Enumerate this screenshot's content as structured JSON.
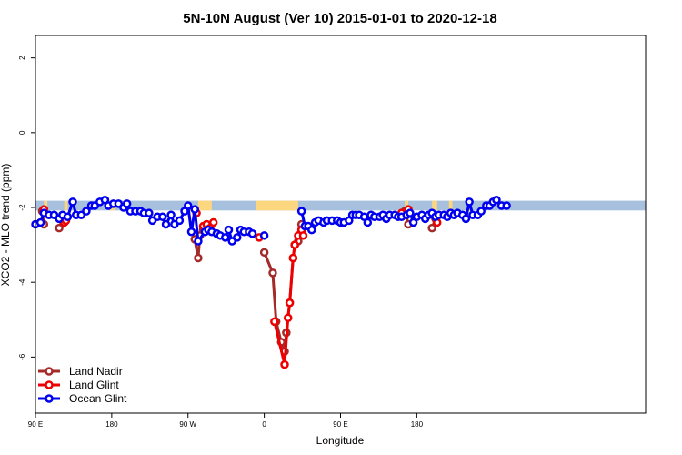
{
  "chart_data": {
    "type": "line",
    "title": "5N-10N August (Ver 10)   2015-01-01 to 2020-12-18",
    "xlabel": "Longitude",
    "ylabel": "XCO2 - MLO trend (ppm)",
    "xlim": [
      -90,
      270
    ],
    "ylim": [
      -7.5,
      2.6
    ],
    "x_ticks": [
      {
        "value": -90,
        "label": "90 E"
      },
      {
        "value": -45,
        "label": "180"
      },
      {
        "value": 0,
        "label": "90 W"
      },
      {
        "value": 45,
        "label": "0"
      },
      {
        "value": 90,
        "label": "90 E"
      },
      {
        "value": 135,
        "label": "180"
      }
    ],
    "y_ticks": [
      -6,
      -4,
      -2,
      0,
      2
    ],
    "land_band": {
      "y_range": [
        -2.08,
        -1.82
      ],
      "ocean_color": "#a7c0dd",
      "land_color": "#fcd77f",
      "land_segments": [
        [
          -85,
          -83
        ],
        [
          -73,
          -71
        ],
        [
          -46,
          -43
        ],
        [
          6,
          14
        ],
        [
          40,
          65
        ],
        [
          128,
          130
        ],
        [
          144,
          147
        ],
        [
          154,
          156
        ]
      ]
    },
    "legend_position": "bottom-left",
    "series": [
      {
        "name": "Land Nadir",
        "color": "#a52a2a",
        "segments": [
          [
            [
              -86,
              -2.1
            ],
            [
              -85,
              -2.45
            ]
          ],
          [
            [
              -76,
              -2.55
            ],
            [
              -74,
              -2.3
            ]
          ],
          [
            [
              4,
              -2.85
            ],
            [
              6,
              -3.35
            ],
            [
              7,
              -2.75
            ],
            [
              9,
              -2.6
            ],
            [
              11,
              -2.55
            ]
          ],
          [
            [
              45,
              -3.2
            ],
            [
              50,
              -3.75
            ],
            [
              52,
              -5.05
            ],
            [
              55,
              -5.6
            ],
            [
              57,
              -5.85
            ],
            [
              58,
              -5.35
            ],
            [
              60,
              -4.55
            ],
            [
              62,
              -3.35
            ],
            [
              63,
              -3.0
            ],
            [
              65,
              -2.9
            ],
            [
              67,
              -2.45
            ]
          ],
          [
            [
              128,
              -2.1
            ],
            [
              130,
              -2.45
            ]
          ],
          [
            [
              144,
              -2.55
            ],
            [
              146,
              -2.3
            ]
          ]
        ]
      },
      {
        "name": "Land Glint",
        "color": "#ee0000",
        "segments": [
          [
            [
              -85,
              -2.05
            ]
          ],
          [
            [
              -73,
              -2.4
            ],
            [
              -72,
              -2.35
            ]
          ],
          [
            [
              5,
              -2.15
            ]
          ],
          [
            [
              9,
              -2.5
            ],
            [
              11,
              -2.45
            ],
            [
              13,
              -2.55
            ],
            [
              15,
              -2.4
            ]
          ],
          [
            [
              42,
              -2.8
            ]
          ],
          [
            [
              51,
              -5.05
            ],
            [
              57,
              -6.2
            ],
            [
              59,
              -4.95
            ],
            [
              60,
              -4.55
            ],
            [
              62,
              -3.35
            ],
            [
              63,
              -3.0
            ],
            [
              65,
              -2.75
            ],
            [
              67,
              -2.6
            ],
            [
              68,
              -2.75
            ]
          ],
          [
            [
              126,
              -2.15
            ]
          ],
          [
            [
              130,
              -2.05
            ]
          ],
          [
            [
              147,
              -2.4
            ]
          ]
        ]
      },
      {
        "name": "Ocean Glint",
        "color": "#0000ee",
        "segments": [
          [
            [
              -90,
              -2.45
            ],
            [
              -87,
              -2.4
            ],
            [
              -85,
              -2.15
            ],
            [
              -82,
              -2.2
            ],
            [
              -79,
              -2.2
            ],
            [
              -76,
              -2.3
            ],
            [
              -74,
              -2.2
            ],
            [
              -71,
              -2.25
            ],
            [
              -68,
              -1.85
            ],
            [
              -66,
              -2.2
            ],
            [
              -63,
              -2.2
            ],
            [
              -60,
              -2.1
            ],
            [
              -57,
              -1.95
            ],
            [
              -55,
              -1.95
            ],
            [
              -52,
              -1.85
            ],
            [
              -49,
              -1.8
            ],
            [
              -47,
              -1.95
            ],
            [
              -44,
              -1.9
            ],
            [
              -41,
              -1.9
            ],
            [
              -38,
              -2.0
            ],
            [
              -36,
              -1.9
            ],
            [
              -34,
              -2.1
            ],
            [
              -31,
              -2.1
            ],
            [
              -28,
              -2.1
            ],
            [
              -26,
              -2.15
            ],
            [
              -23,
              -2.15
            ],
            [
              -21,
              -2.35
            ],
            [
              -18,
              -2.25
            ],
            [
              -15,
              -2.25
            ],
            [
              -13,
              -2.45
            ],
            [
              -10,
              -2.2
            ],
            [
              -8,
              -2.45
            ],
            [
              -5,
              -2.35
            ],
            [
              -2,
              -2.1
            ],
            [
              0,
              -1.95
            ],
            [
              2,
              -2.65
            ],
            [
              4,
              -2.05
            ],
            [
              6,
              -2.9
            ],
            [
              10,
              -2.65
            ],
            [
              12,
              -2.6
            ],
            [
              14,
              -2.65
            ],
            [
              17,
              -2.7
            ],
            [
              19,
              -2.75
            ],
            [
              22,
              -2.8
            ],
            [
              24,
              -2.6
            ],
            [
              26,
              -2.9
            ],
            [
              29,
              -2.8
            ],
            [
              31,
              -2.6
            ],
            [
              33,
              -2.65
            ],
            [
              36,
              -2.65
            ],
            [
              38,
              -2.7
            ]
          ],
          [
            [
              45,
              -2.75
            ]
          ],
          [
            [
              67,
              -2.1
            ],
            [
              69,
              -2.5
            ],
            [
              71,
              -2.5
            ],
            [
              73,
              -2.6
            ],
            [
              75,
              -2.4
            ],
            [
              77,
              -2.35
            ],
            [
              80,
              -2.4
            ],
            [
              82,
              -2.35
            ],
            [
              85,
              -2.35
            ],
            [
              88,
              -2.35
            ],
            [
              90,
              -2.4
            ],
            [
              92,
              -2.4
            ],
            [
              95,
              -2.35
            ],
            [
              97,
              -2.2
            ],
            [
              99,
              -2.2
            ],
            [
              101,
              -2.2
            ],
            [
              104,
              -2.25
            ],
            [
              106,
              -2.4
            ],
            [
              108,
              -2.2
            ],
            [
              110,
              -2.25
            ],
            [
              113,
              -2.25
            ],
            [
              115,
              -2.2
            ],
            [
              117,
              -2.3
            ],
            [
              119,
              -2.2
            ],
            [
              122,
              -2.2
            ],
            [
              124,
              -2.25
            ],
            [
              126,
              -2.25
            ],
            [
              129,
              -2.2
            ],
            [
              131,
              -2.15
            ],
            [
              133,
              -2.4
            ],
            [
              135,
              -2.25
            ],
            [
              138,
              -2.2
            ],
            [
              140,
              -2.3
            ],
            [
              142,
              -2.2
            ],
            [
              144,
              -2.15
            ],
            [
              146,
              -2.25
            ],
            [
              148,
              -2.2
            ],
            [
              151,
              -2.2
            ],
            [
              153,
              -2.25
            ],
            [
              155,
              -2.15
            ],
            [
              157,
              -2.2
            ],
            [
              159,
              -2.15
            ],
            [
              162,
              -2.2
            ],
            [
              164,
              -2.3
            ],
            [
              166,
              -1.85
            ],
            [
              168,
              -2.2
            ],
            [
              171,
              -2.2
            ],
            [
              173,
              -2.1
            ],
            [
              176,
              -1.95
            ],
            [
              178,
              -1.95
            ],
            [
              180,
              -1.85
            ],
            [
              182,
              -1.8
            ],
            [
              185,
              -1.95
            ],
            [
              188,
              -1.95
            ]
          ]
        ]
      }
    ]
  }
}
